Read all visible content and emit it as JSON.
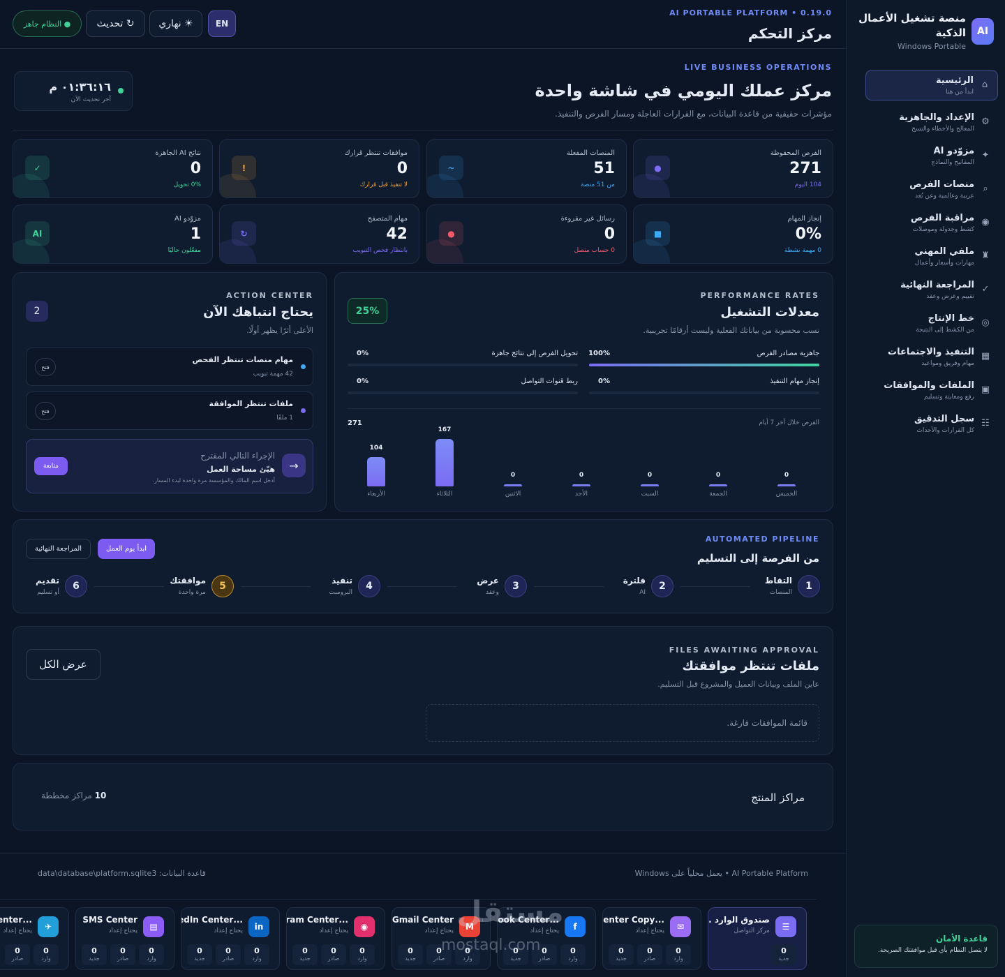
{
  "sidebar": {
    "logo": "AI",
    "title": "منصة تشغيل الأعمال الذكية",
    "subtitle": "Windows Portable",
    "items": [
      {
        "label": "الرئيسية",
        "sub": "ابدأ من هنا",
        "icon": "⌂"
      },
      {
        "label": "الإعداد والجاهزية",
        "sub": "المعالج والأخطاء والنسخ",
        "icon": "⚙"
      },
      {
        "label": "مزوّدو AI",
        "sub": "المفاتيح والنماذج",
        "icon": "✦"
      },
      {
        "label": "منصات الفرص",
        "sub": "عربية وعالمية وعن بُعد",
        "icon": "⌕"
      },
      {
        "label": "مراقبة الفرص",
        "sub": "كشط وجدولة وموصلات",
        "icon": "◉"
      },
      {
        "label": "ملفي المهني",
        "sub": "مهارات وأسعار وأعمال",
        "icon": "♜"
      },
      {
        "label": "المراجعة النهائية",
        "sub": "تقييم وعرض وعقد",
        "icon": "✓"
      },
      {
        "label": "خط الإنتاج",
        "sub": "من الكشط إلى النتيجة",
        "icon": "◎"
      },
      {
        "label": "التنفيذ والاجتماعات",
        "sub": "مهام وفريق ومواعيد",
        "icon": "▦"
      },
      {
        "label": "الملفات والموافقات",
        "sub": "رفع ومعاينة وتسليم",
        "icon": "▣"
      },
      {
        "label": "سجل التدقيق",
        "sub": "كل القرارات والأحداث",
        "icon": "☷"
      }
    ],
    "safety_title": "قاعدة الأمان",
    "safety_text": "لا يتصل النظام بأي قبل موافقتك الصريحة."
  },
  "header": {
    "platform": "AI PORTABLE PLATFORM • 0.19.0",
    "title": "مركز التحكم",
    "lang": "EN",
    "theme": "☀ نهاري",
    "refresh": "↻ تحديث",
    "status": "● النظام جاهز"
  },
  "hero": {
    "kicker": "LIVE BUSINESS OPERATIONS",
    "title": "مركز عملك اليومي في شاشة واحدة",
    "subtitle": "مؤشرات حقيقية من قاعدة البيانات، مع القرارات العاجلة ومسار الفرص والتنفيذ.",
    "time": "٠١:٣٦:١٦ م",
    "time_label": "آخر تحديث الآن"
  },
  "stats": [
    {
      "label": "الفرص المحفوظة",
      "value": "271",
      "sub": "104 اليوم",
      "icon": "●",
      "color": "#7c6cf4"
    },
    {
      "label": "المنصات المفعلة",
      "value": "51",
      "sub": "من 51 منصة",
      "icon": "~",
      "color": "#3fa9f5"
    },
    {
      "label": "موافقات تنتظر قرارك",
      "value": "0",
      "sub": "لا تنفيذ قبل قرارك",
      "icon": "!",
      "color": "#f2a33a"
    },
    {
      "label": "نتائج AI الجاهزة",
      "value": "0",
      "sub": "0% تحويل",
      "icon": "✓",
      "color": "#3fd39a"
    },
    {
      "label": "إنجاز المهام",
      "value": "0%",
      "sub": "0 مهمة نشطة",
      "icon": "■",
      "color": "#3fa9f5"
    },
    {
      "label": "رسائل غير مقروءة",
      "value": "0",
      "sub": "0 حساب متصل",
      "icon": "●",
      "color": "#f25c6a"
    },
    {
      "label": "مهام المتصفح",
      "value": "42",
      "sub": "بانتظار فحص التبويب",
      "icon": "↻",
      "color": "#7c6cf4"
    },
    {
      "label": "مزوّدو AI",
      "value": "1",
      "sub": "مفعّلون حاليًا",
      "icon": "AI",
      "color": "#3fd39a"
    }
  ],
  "performance": {
    "kicker": "PERFORMANCE RATES",
    "title": "معدلات التشغيل",
    "subtitle": "نسب محسوبة من بياناتك الفعلية وليست أرقامًا تجريبية.",
    "badge": "25%",
    "rates": [
      {
        "label": "جاهزية مصادر الفرص",
        "value": "100%",
        "fraction": 1.0
      },
      {
        "label": "تحويل الفرص إلى نتائج جاهزة",
        "value": "0%",
        "fraction": 0
      },
      {
        "label": "إنجاز مهام التنفيذ",
        "value": "0%",
        "fraction": 0
      },
      {
        "label": "ربط قنوات التواصل",
        "value": "0%",
        "fraction": 0
      }
    ],
    "chart_label": "الفرص خلال آخر 7 أيام",
    "chart_total": "271"
  },
  "chart_data": {
    "type": "bar",
    "categories": [
      "الخميس",
      "الجمعة",
      "السبت",
      "الأحد",
      "الاثنين",
      "الثلاثاء",
      "الأربعاء"
    ],
    "values": [
      0,
      0,
      0,
      0,
      0,
      167,
      104
    ],
    "ylim": [
      0,
      167
    ]
  },
  "action": {
    "kicker": "ACTION CENTER",
    "title": "يحتاج انتباهك الآن",
    "subtitle": "الأعلى أثرًا يظهر أولًا.",
    "count": "2",
    "items": [
      {
        "title": "مهام منصات تنتظر الفحص",
        "sub": "42 مهمة تبويب",
        "btn": "فتح",
        "dot": "#3fa9f5"
      },
      {
        "title": "ملفات تنتظر الموافقة",
        "sub": "1 ملفًا",
        "btn": "فتح",
        "dot": "#7c6cf4"
      }
    ],
    "next_label": "الإجراء التالي المقترح",
    "next_title": "هيّئ مساحة العمل",
    "next_sub": "أدخل اسم المالك والمؤسسة مرة واحدة لبدء المسار.",
    "next_btn": "متابعة",
    "next_arrow": "→"
  },
  "pipeline": {
    "kicker": "AUTOMATED PIPELINE",
    "title": "من الفرصة إلى التسليم",
    "btn_start": "ابدأ يوم العمل",
    "btn_review": "المراجعة النهائية",
    "steps": [
      {
        "n": "1",
        "label": "التقاط",
        "sub": "المنصات"
      },
      {
        "n": "2",
        "label": "فلترة",
        "sub": "AI"
      },
      {
        "n": "3",
        "label": "عرض",
        "sub": "وعقد"
      },
      {
        "n": "4",
        "label": "تنفيذ",
        "sub": "البرومبت"
      },
      {
        "n": "5",
        "label": "موافقتك",
        "sub": "مرة واحدة"
      },
      {
        "n": "6",
        "label": "تقديم",
        "sub": "أو تسليم"
      }
    ]
  },
  "files": {
    "kicker": "FILES AWAITING APPROVAL",
    "title": "ملفات تنتظر موافقتك",
    "subtitle": "عاين الملف وبيانات العميل والمشروع قبل التسليم.",
    "btn": "عرض الكل",
    "empty": "قائمة الموافقات فارغة."
  },
  "product": {
    "title": "مراكز المنتج",
    "count_num": "10",
    "count_label": "مراكز مخططة"
  },
  "footer": {
    "left": "Windows يعمل محلياً على • AI Portable Platform",
    "right": "قاعدة البيانات: data\\database\\platform.sqlite3"
  },
  "channels": [
    {
      "name": "صندوق الوارد ...",
      "sub": "مركز التواصل",
      "icon": "☰",
      "color": "#7c6cf4",
      "stats": [
        {
          "v": "0",
          "l": "جديد"
        }
      ]
    },
    {
      "name": "...Center Copy",
      "sub": "يحتاج إعداد",
      "icon": "✉",
      "color": "#9b6cf4",
      "stats": [
        {
          "v": "0",
          "l": "وارد"
        },
        {
          "v": "0",
          "l": "صادر"
        },
        {
          "v": "0",
          "l": "جديد"
        }
      ]
    },
    {
      "name": "...book Center",
      "sub": "يحتاج إعداد",
      "icon": "f",
      "color": "#1877f2",
      "stats": [
        {
          "v": "0",
          "l": "وارد"
        },
        {
          "v": "0",
          "l": "صادر"
        },
        {
          "v": "0",
          "l": "جديد"
        }
      ]
    },
    {
      "name": "Gmail Center",
      "sub": "يحتاج إعداد",
      "icon": "M",
      "color": "#ea4335",
      "stats": [
        {
          "v": "0",
          "l": "وارد"
        },
        {
          "v": "0",
          "l": "صادر"
        },
        {
          "v": "0",
          "l": "جديد"
        }
      ]
    },
    {
      "name": "...gram Center",
      "sub": "يحتاج إعداد",
      "icon": "◉",
      "color": "#e1306c",
      "stats": [
        {
          "v": "0",
          "l": "وارد"
        },
        {
          "v": "0",
          "l": "صادر"
        },
        {
          "v": "0",
          "l": "جديد"
        }
      ]
    },
    {
      "name": "...kedIn Center",
      "sub": "يحتاج إعداد",
      "icon": "in",
      "color": "#0a66c2",
      "stats": [
        {
          "v": "0",
          "l": "وارد"
        },
        {
          "v": "0",
          "l": "صادر"
        },
        {
          "v": "0",
          "l": "جديد"
        }
      ]
    },
    {
      "name": "SMS Center",
      "sub": "يحتاج إعداد",
      "icon": "▤",
      "color": "#8b5cf6",
      "stats": [
        {
          "v": "0",
          "l": "وارد"
        },
        {
          "v": "0",
          "l": "صادر"
        },
        {
          "v": "0",
          "l": "جديد"
        }
      ]
    },
    {
      "name": "...m Center",
      "sub": "يحتاج إعداد",
      "icon": "✈",
      "color": "#229ed9",
      "stats": [
        {
          "v": "0",
          "l": "وارد"
        },
        {
          "v": "0",
          "l": "صادر"
        }
      ]
    }
  ],
  "watermark": {
    "arabic": "مستقل",
    "latin": "mostaql.com"
  }
}
